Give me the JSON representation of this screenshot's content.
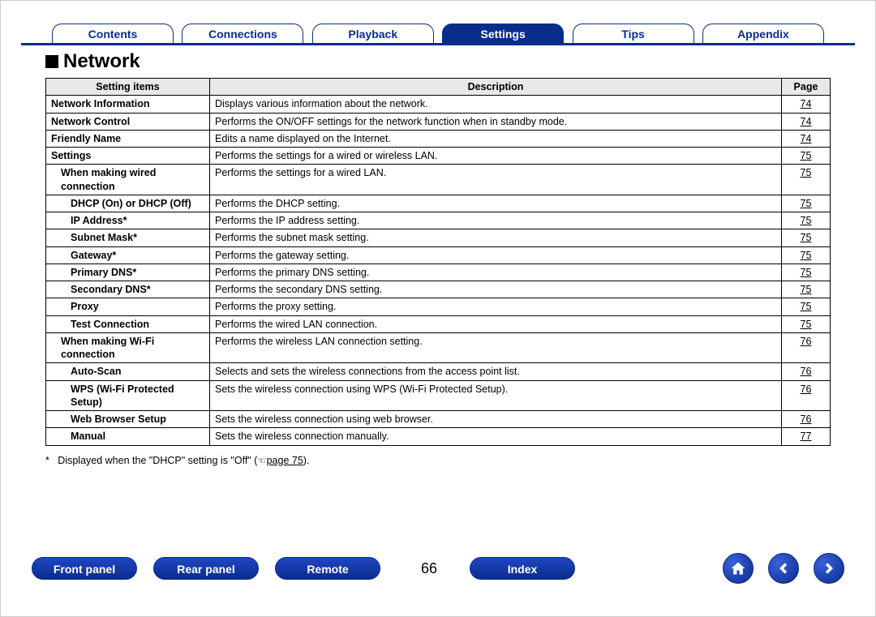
{
  "tabs": {
    "items": [
      "Contents",
      "Connections",
      "Playback",
      "Settings",
      "Tips",
      "Appendix"
    ],
    "active_index": 3
  },
  "section_title": "Network",
  "table": {
    "headers": [
      "Setting items",
      "Description",
      "Page"
    ],
    "rows": [
      {
        "indent": 0,
        "item": "Network Information",
        "desc": "Displays various information about the network.",
        "page": "74"
      },
      {
        "indent": 0,
        "item": "Network Control",
        "desc": "Performs the ON/OFF settings for the network function when in standby mode.",
        "page": "74"
      },
      {
        "indent": 0,
        "item": "Friendly Name",
        "desc": "Edits a name displayed on the Internet.",
        "page": "74"
      },
      {
        "indent": 0,
        "item": "Settings",
        "desc": "Performs the settings for a wired or wireless LAN.",
        "page": "75"
      },
      {
        "indent": 1,
        "item": "When making wired connection",
        "desc": "Performs the settings for a wired LAN.",
        "page": "75"
      },
      {
        "indent": 2,
        "item": "DHCP (On) or DHCP (Off)",
        "desc": "Performs the DHCP setting.",
        "page": "75"
      },
      {
        "indent": 2,
        "item": "IP Address*",
        "desc": "Performs the IP address setting.",
        "page": "75"
      },
      {
        "indent": 2,
        "item": "Subnet Mask*",
        "desc": "Performs the subnet mask setting.",
        "page": "75"
      },
      {
        "indent": 2,
        "item": "Gateway*",
        "desc": "Performs the gateway setting.",
        "page": "75"
      },
      {
        "indent": 2,
        "item": "Primary DNS*",
        "desc": "Performs the primary DNS setting.",
        "page": "75"
      },
      {
        "indent": 2,
        "item": "Secondary DNS*",
        "desc": "Performs the secondary DNS setting.",
        "page": "75"
      },
      {
        "indent": 2,
        "item": "Proxy",
        "desc": "Performs the proxy setting.",
        "page": "75"
      },
      {
        "indent": 2,
        "item": "Test Connection",
        "desc": "Performs the wired LAN connection.",
        "page": "75"
      },
      {
        "indent": 1,
        "item": "When making Wi-Fi connection",
        "desc": "Performs the wireless LAN connection setting.",
        "page": "76"
      },
      {
        "indent": 2,
        "item": "Auto-Scan",
        "desc": "Selects and sets the wireless connections from the access point list.",
        "page": "76"
      },
      {
        "indent": 2,
        "item": "WPS (Wi-Fi Protected Setup)",
        "justify": true,
        "desc": "Sets the wireless connection using WPS (Wi-Fi Protected Setup).",
        "page": "76"
      },
      {
        "indent": 2,
        "item": "Web Browser Setup",
        "desc": "Sets the wireless connection using web browser.",
        "page": "76"
      },
      {
        "indent": 2,
        "item": "Manual",
        "desc": "Sets the wireless connection manually.",
        "page": "77"
      }
    ]
  },
  "footnote": {
    "marker": "*",
    "text_before": "Displayed when the \"DHCP\" setting is \"Off\" (",
    "link_text": "page 75",
    "text_after": ")."
  },
  "bottom": {
    "buttons": [
      "Front panel",
      "Rear panel",
      "Remote"
    ],
    "page_number": "66",
    "index": "Index"
  }
}
